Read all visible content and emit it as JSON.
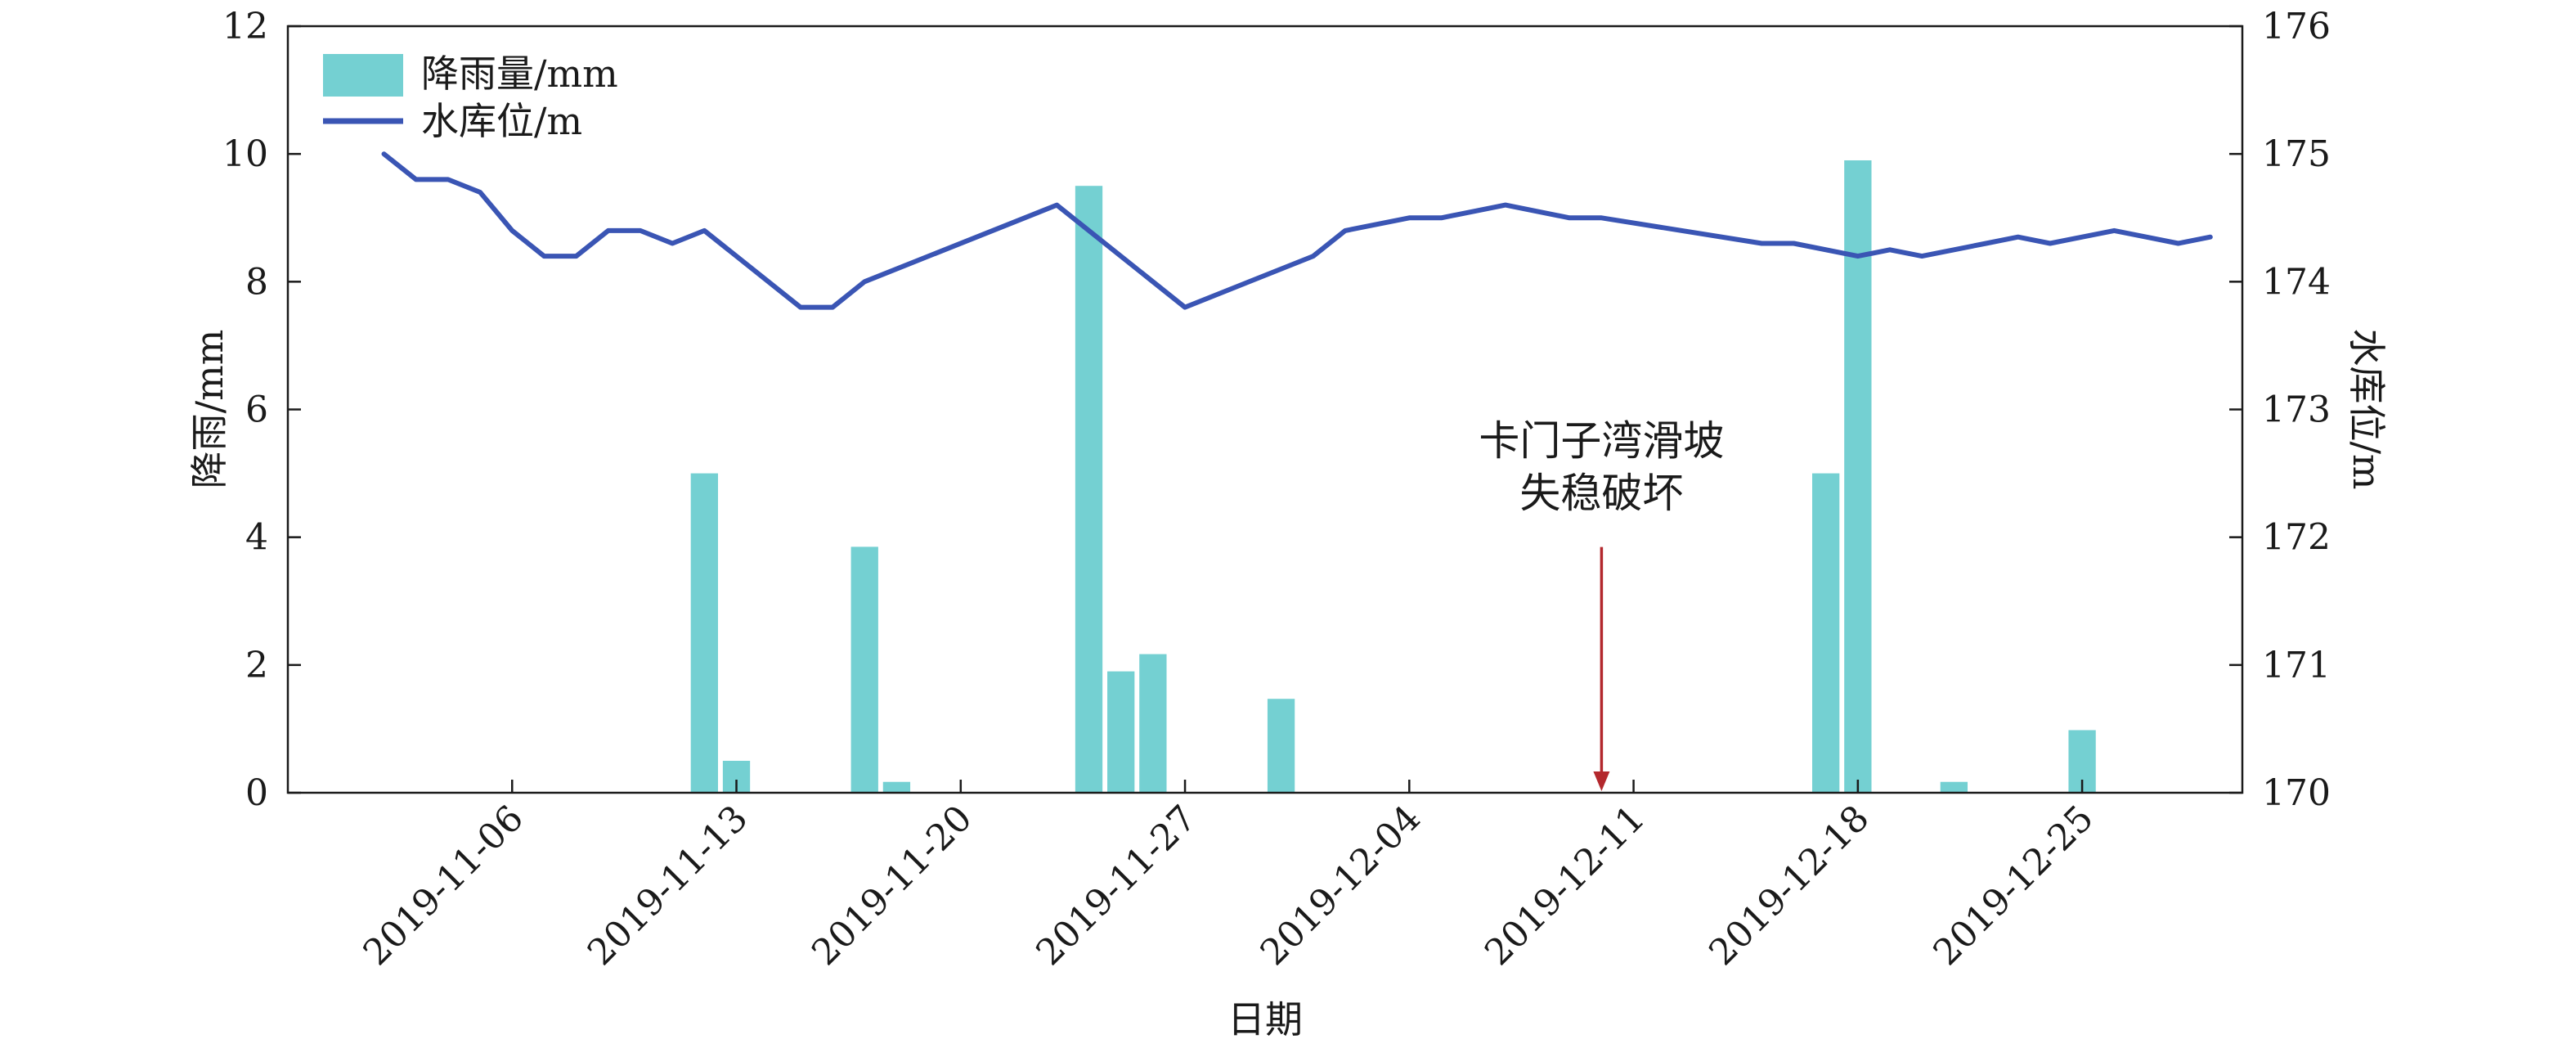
{
  "chart_data": {
    "type": "bar+line",
    "title": "",
    "xlabel": "日期",
    "ylabel_left": "降雨/mm",
    "ylabel_right": "水库位/m",
    "ylim_left": [
      0,
      12
    ],
    "ylim_right": [
      170,
      176
    ],
    "yticks_left": [
      "0",
      "2",
      "4",
      "6",
      "8",
      "10",
      "12"
    ],
    "yticks_right": [
      "170",
      "171",
      "172",
      "173",
      "174",
      "175",
      "176"
    ],
    "xlim": [
      "2019-10-30",
      "2019-12-30"
    ],
    "xticks": [
      "2019-11-06",
      "2019-11-13",
      "2019-11-20",
      "2019-11-27",
      "2019-12-04",
      "2019-12-11",
      "2019-12-18",
      "2019-12-25"
    ],
    "grid": false,
    "legend_position": "top-left",
    "colors": {
      "bar": "#74d0d2",
      "line": "#3a55b4",
      "arrow": "#b3282d",
      "axis": "#1a1a1a"
    },
    "series": [
      {
        "name": "降雨量/mm",
        "type": "bar",
        "axis": "left",
        "points": [
          {
            "x": "2019-11-12",
            "y": 5.0
          },
          {
            "x": "2019-11-13",
            "y": 0.5
          },
          {
            "x": "2019-11-17",
            "y": 3.85
          },
          {
            "x": "2019-11-18",
            "y": 0.17
          },
          {
            "x": "2019-11-24",
            "y": 9.5
          },
          {
            "x": "2019-11-25",
            "y": 1.9
          },
          {
            "x": "2019-11-26",
            "y": 2.17
          },
          {
            "x": "2019-11-30",
            "y": 1.47
          },
          {
            "x": "2019-12-17",
            "y": 5.0
          },
          {
            "x": "2019-12-18",
            "y": 9.9
          },
          {
            "x": "2019-12-21",
            "y": 0.17
          },
          {
            "x": "2019-12-25",
            "y": 0.98
          }
        ]
      },
      {
        "name": "水库位/m",
        "type": "line",
        "axis": "right",
        "points": [
          {
            "x": "2019-11-02",
            "y": 175.0
          },
          {
            "x": "2019-11-03",
            "y": 174.8
          },
          {
            "x": "2019-11-04",
            "y": 174.8
          },
          {
            "x": "2019-11-05",
            "y": 174.7
          },
          {
            "x": "2019-11-06",
            "y": 174.4
          },
          {
            "x": "2019-11-07",
            "y": 174.2
          },
          {
            "x": "2019-11-08",
            "y": 174.2
          },
          {
            "x": "2019-11-09",
            "y": 174.4
          },
          {
            "x": "2019-11-10",
            "y": 174.4
          },
          {
            "x": "2019-11-11",
            "y": 174.3
          },
          {
            "x": "2019-11-12",
            "y": 174.4
          },
          {
            "x": "2019-11-15",
            "y": 173.8
          },
          {
            "x": "2019-11-16",
            "y": 173.8
          },
          {
            "x": "2019-11-17",
            "y": 174.0
          },
          {
            "x": "2019-11-23",
            "y": 174.6
          },
          {
            "x": "2019-11-27",
            "y": 173.8
          },
          {
            "x": "2019-12-01",
            "y": 174.2
          },
          {
            "x": "2019-12-02",
            "y": 174.4
          },
          {
            "x": "2019-12-04",
            "y": 174.5
          },
          {
            "x": "2019-12-05",
            "y": 174.5
          },
          {
            "x": "2019-12-07",
            "y": 174.6
          },
          {
            "x": "2019-12-09",
            "y": 174.5
          },
          {
            "x": "2019-12-10",
            "y": 174.5
          },
          {
            "x": "2019-12-15",
            "y": 174.3
          },
          {
            "x": "2019-12-16",
            "y": 174.3
          },
          {
            "x": "2019-12-18",
            "y": 174.2
          },
          {
            "x": "2019-12-19",
            "y": 174.25
          },
          {
            "x": "2019-12-20",
            "y": 174.2
          },
          {
            "x": "2019-12-21",
            "y": 174.25
          },
          {
            "x": "2019-12-22",
            "y": 174.3
          },
          {
            "x": "2019-12-23",
            "y": 174.35
          },
          {
            "x": "2019-12-24",
            "y": 174.3
          },
          {
            "x": "2019-12-25",
            "y": 174.35
          },
          {
            "x": "2019-12-26",
            "y": 174.4
          },
          {
            "x": "2019-12-27",
            "y": 174.35
          },
          {
            "x": "2019-12-28",
            "y": 174.3
          },
          {
            "x": "2019-12-29",
            "y": 174.35
          }
        ]
      }
    ],
    "annotations": [
      {
        "text_lines": [
          "卡门子湾滑坡",
          "失稳破坏"
        ],
        "x": "2019-12-10",
        "arrow_from_y": 4.0,
        "arrow_to_y": 0.0
      }
    ]
  }
}
